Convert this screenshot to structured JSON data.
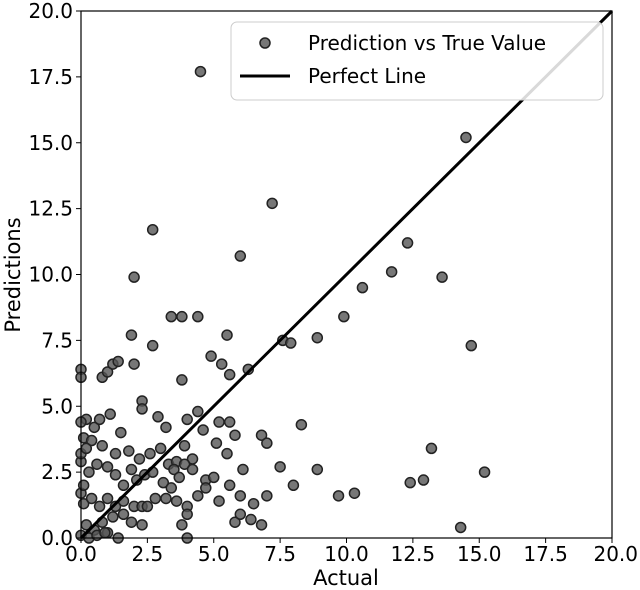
{
  "chart_data": {
    "type": "scatter",
    "title": "",
    "xlabel": "Actual",
    "ylabel": "Predictions",
    "xlim": [
      0,
      20
    ],
    "ylim": [
      0,
      20
    ],
    "xticks": [
      "0.0",
      "2.5",
      "5.0",
      "7.5",
      "10.0",
      "12.5",
      "15.0",
      "17.5",
      "20.0"
    ],
    "yticks": [
      "0.0",
      "2.5",
      "5.0",
      "7.5",
      "10.0",
      "12.5",
      "15.0",
      "17.5",
      "20.0"
    ],
    "grid": false,
    "legend": {
      "placement": "top-right",
      "entries": [
        "Prediction vs True Value",
        "Perfect Line"
      ]
    },
    "colors": {
      "points_fill": "#555555",
      "points_edge": "#222222",
      "line": "#000000"
    },
    "series": [
      {
        "name": "Prediction vs True Value",
        "type": "scatter",
        "points": [
          [
            4.5,
            17.7
          ],
          [
            14.5,
            15.2
          ],
          [
            2.7,
            11.7
          ],
          [
            7.2,
            12.7
          ],
          [
            2.0,
            9.9
          ],
          [
            6.0,
            10.7
          ],
          [
            12.3,
            11.2
          ],
          [
            11.7,
            10.1
          ],
          [
            13.6,
            9.9
          ],
          [
            10.6,
            9.5
          ],
          [
            9.9,
            8.4
          ],
          [
            14.7,
            7.3
          ],
          [
            8.9,
            7.6
          ],
          [
            7.6,
            7.5
          ],
          [
            7.9,
            7.4
          ],
          [
            3.4,
            8.4
          ],
          [
            3.8,
            8.4
          ],
          [
            4.4,
            8.4
          ],
          [
            1.9,
            7.7
          ],
          [
            2.7,
            7.3
          ],
          [
            5.5,
            7.7
          ],
          [
            0.0,
            6.4
          ],
          [
            0.0,
            6.1
          ],
          [
            0.8,
            6.1
          ],
          [
            1.0,
            6.3
          ],
          [
            1.2,
            6.6
          ],
          [
            1.4,
            6.7
          ],
          [
            2.0,
            6.6
          ],
          [
            3.8,
            6.0
          ],
          [
            4.9,
            6.9
          ],
          [
            5.3,
            6.6
          ],
          [
            5.6,
            6.2
          ],
          [
            6.3,
            6.4
          ],
          [
            0.2,
            4.5
          ],
          [
            0.5,
            4.2
          ],
          [
            0.7,
            4.5
          ],
          [
            1.1,
            4.7
          ],
          [
            1.5,
            4.0
          ],
          [
            2.3,
            5.2
          ],
          [
            2.3,
            4.9
          ],
          [
            2.9,
            4.6
          ],
          [
            3.2,
            4.2
          ],
          [
            4.0,
            4.5
          ],
          [
            4.4,
            4.8
          ],
          [
            5.2,
            4.4
          ],
          [
            5.6,
            4.4
          ],
          [
            4.6,
            4.1
          ],
          [
            0.1,
            3.8
          ],
          [
            0.4,
            3.7
          ],
          [
            0.8,
            3.5
          ],
          [
            1.3,
            3.2
          ],
          [
            1.8,
            3.3
          ],
          [
            2.2,
            3.0
          ],
          [
            2.6,
            3.2
          ],
          [
            3.0,
            3.4
          ],
          [
            3.3,
            2.8
          ],
          [
            3.6,
            2.9
          ],
          [
            3.9,
            3.5
          ],
          [
            4.2,
            3.0
          ],
          [
            4.7,
            2.2
          ],
          [
            5.1,
            3.6
          ],
          [
            5.5,
            3.2
          ],
          [
            5.8,
            3.9
          ],
          [
            6.8,
            3.9
          ],
          [
            7.0,
            3.6
          ],
          [
            7.5,
            2.7
          ],
          [
            8.3,
            4.3
          ],
          [
            13.2,
            3.4
          ],
          [
            8.9,
            2.6
          ],
          [
            15.2,
            2.5
          ],
          [
            0.3,
            2.5
          ],
          [
            0.6,
            2.8
          ],
          [
            1.0,
            2.7
          ],
          [
            1.3,
            2.4
          ],
          [
            1.6,
            2.0
          ],
          [
            1.9,
            2.6
          ],
          [
            2.1,
            2.2
          ],
          [
            2.4,
            2.4
          ],
          [
            2.7,
            2.5
          ],
          [
            3.1,
            2.1
          ],
          [
            3.5,
            2.6
          ],
          [
            3.9,
            2.8
          ],
          [
            4.2,
            2.6
          ],
          [
            3.4,
            1.9
          ],
          [
            3.7,
            2.3
          ],
          [
            5.0,
            2.3
          ],
          [
            6.1,
            2.6
          ],
          [
            8.0,
            2.0
          ],
          [
            12.4,
            2.1
          ],
          [
            12.9,
            2.2
          ],
          [
            0.1,
            1.3
          ],
          [
            0.4,
            1.5
          ],
          [
            0.7,
            1.2
          ],
          [
            1.0,
            1.5
          ],
          [
            1.3,
            1.2
          ],
          [
            1.6,
            1.4
          ],
          [
            2.0,
            1.2
          ],
          [
            2.3,
            1.2
          ],
          [
            2.5,
            1.2
          ],
          [
            2.8,
            1.5
          ],
          [
            3.2,
            1.5
          ],
          [
            3.6,
            1.4
          ],
          [
            4.0,
            1.2
          ],
          [
            4.4,
            1.6
          ],
          [
            4.7,
            1.9
          ],
          [
            5.2,
            1.4
          ],
          [
            5.6,
            2.0
          ],
          [
            6.0,
            1.6
          ],
          [
            6.5,
            1.3
          ],
          [
            7.0,
            1.6
          ],
          [
            9.7,
            1.6
          ],
          [
            10.3,
            1.7
          ],
          [
            0.2,
            0.5
          ],
          [
            0.5,
            0.3
          ],
          [
            0.8,
            0.6
          ],
          [
            1.0,
            0.2
          ],
          [
            1.2,
            0.8
          ],
          [
            1.6,
            0.9
          ],
          [
            1.9,
            0.6
          ],
          [
            2.3,
            0.5
          ],
          [
            3.8,
            0.5
          ],
          [
            4.0,
            0.9
          ],
          [
            5.8,
            0.6
          ],
          [
            6.0,
            0.9
          ],
          [
            6.4,
            0.7
          ],
          [
            6.8,
            0.5
          ],
          [
            14.3,
            0.4
          ],
          [
            0.0,
            0.1
          ],
          [
            0.3,
            0.0
          ],
          [
            0.6,
            0.1
          ],
          [
            0.9,
            0.2
          ],
          [
            1.4,
            0.0
          ],
          [
            4.0,
            0.0
          ],
          [
            0.0,
            1.7
          ],
          [
            0.0,
            2.9
          ],
          [
            0.0,
            3.2
          ],
          [
            0.0,
            4.4
          ],
          [
            0.2,
            3.4
          ],
          [
            0.1,
            2.0
          ]
        ]
      },
      {
        "name": "Perfect Line",
        "type": "line",
        "points": [
          [
            0,
            0
          ],
          [
            20,
            20
          ]
        ]
      }
    ]
  }
}
